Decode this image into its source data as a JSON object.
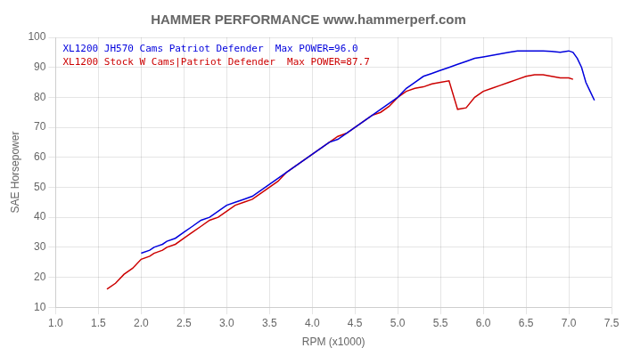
{
  "chart_data": {
    "type": "line",
    "title": "HAMMER PERFORMANCE www.hammerperf.com",
    "xlabel": "RPM (x1000)",
    "ylabel": "SAE Horsepower",
    "xlim": [
      1.0,
      7.5
    ],
    "ylim": [
      10,
      100
    ],
    "xticks": [
      {
        "value": 1,
        "label": "1.0"
      },
      1.5,
      {
        "value": 2,
        "label": "2.0"
      },
      2.5,
      {
        "value": 3,
        "label": "3.0"
      },
      3.5,
      {
        "value": 4,
        "label": "4.0"
      },
      4.5,
      {
        "value": 5,
        "label": "5.0"
      },
      5.5,
      {
        "value": 6,
        "label": "6.0"
      },
      6.5,
      {
        "value": 7,
        "label": "7.0"
      },
      7.5
    ],
    "yticks": [
      10,
      20,
      30,
      40,
      50,
      60,
      70,
      80,
      90,
      100
    ],
    "grid": true,
    "legend": "upper left",
    "series": [
      {
        "name": "XL1200 JH570 Cams Patriot Defender  Max POWER=96.0",
        "color": "#0000dd",
        "x": [
          2.0,
          2.1,
          2.15,
          2.2,
          2.25,
          2.3,
          2.4,
          2.5,
          2.6,
          2.7,
          2.8,
          2.9,
          3.0,
          3.1,
          3.2,
          3.3,
          3.4,
          3.5,
          3.6,
          3.7,
          3.8,
          3.9,
          4.0,
          4.1,
          4.2,
          4.3,
          4.4,
          4.5,
          4.6,
          4.7,
          4.8,
          4.9,
          5.0,
          5.1,
          5.2,
          5.3,
          5.4,
          5.5,
          5.6,
          5.7,
          5.8,
          5.9,
          6.0,
          6.1,
          6.2,
          6.3,
          6.4,
          6.5,
          6.6,
          6.65,
          6.7,
          6.8,
          6.9,
          7.0,
          7.05,
          7.1,
          7.15,
          7.2,
          7.25,
          7.3
        ],
        "values": [
          28,
          29,
          30,
          30.5,
          31,
          32,
          33,
          35,
          37,
          39,
          40,
          42,
          44,
          45,
          46,
          47,
          49,
          51,
          53,
          55,
          57,
          59,
          61,
          63,
          65,
          66,
          68,
          70,
          72,
          74,
          76,
          78,
          80,
          83,
          85,
          87,
          88,
          89,
          90,
          91,
          92,
          93,
          93.5,
          94,
          94.5,
          95,
          95.5,
          95.5,
          95.5,
          95.5,
          95.5,
          95.3,
          95,
          95.5,
          95,
          93,
          90,
          85,
          82,
          79
        ]
      },
      {
        "name": "XL1200 Stock W Cams|Patriot Defender  Max POWER=87.7",
        "color": "#cc0000",
        "x": [
          1.6,
          1.7,
          1.8,
          1.9,
          2.0,
          2.1,
          2.15,
          2.2,
          2.25,
          2.3,
          2.4,
          2.5,
          2.6,
          2.7,
          2.8,
          2.9,
          3.0,
          3.1,
          3.2,
          3.3,
          3.4,
          3.5,
          3.6,
          3.7,
          3.8,
          3.9,
          4.0,
          4.1,
          4.2,
          4.3,
          4.4,
          4.5,
          4.6,
          4.7,
          4.8,
          4.9,
          5.0,
          5.1,
          5.2,
          5.3,
          5.4,
          5.5,
          5.6,
          5.7,
          5.8,
          5.9,
          6.0,
          6.1,
          6.2,
          6.3,
          6.4,
          6.5,
          6.6,
          6.7,
          6.8,
          6.9,
          7.0,
          7.05
        ],
        "values": [
          16,
          18,
          21,
          23,
          26,
          27,
          28,
          28.5,
          29,
          30,
          31,
          33,
          35,
          37,
          39,
          40,
          42,
          44,
          45,
          46,
          48,
          50,
          52,
          55,
          57,
          59,
          61,
          63,
          65,
          67,
          68,
          70,
          72,
          74,
          75,
          77,
          80,
          82,
          83,
          83.5,
          84.5,
          85,
          85.5,
          76,
          76.5,
          80,
          82,
          83,
          84,
          85,
          86,
          87,
          87.5,
          87.5,
          87,
          86.5,
          86.5,
          86
        ]
      }
    ]
  }
}
